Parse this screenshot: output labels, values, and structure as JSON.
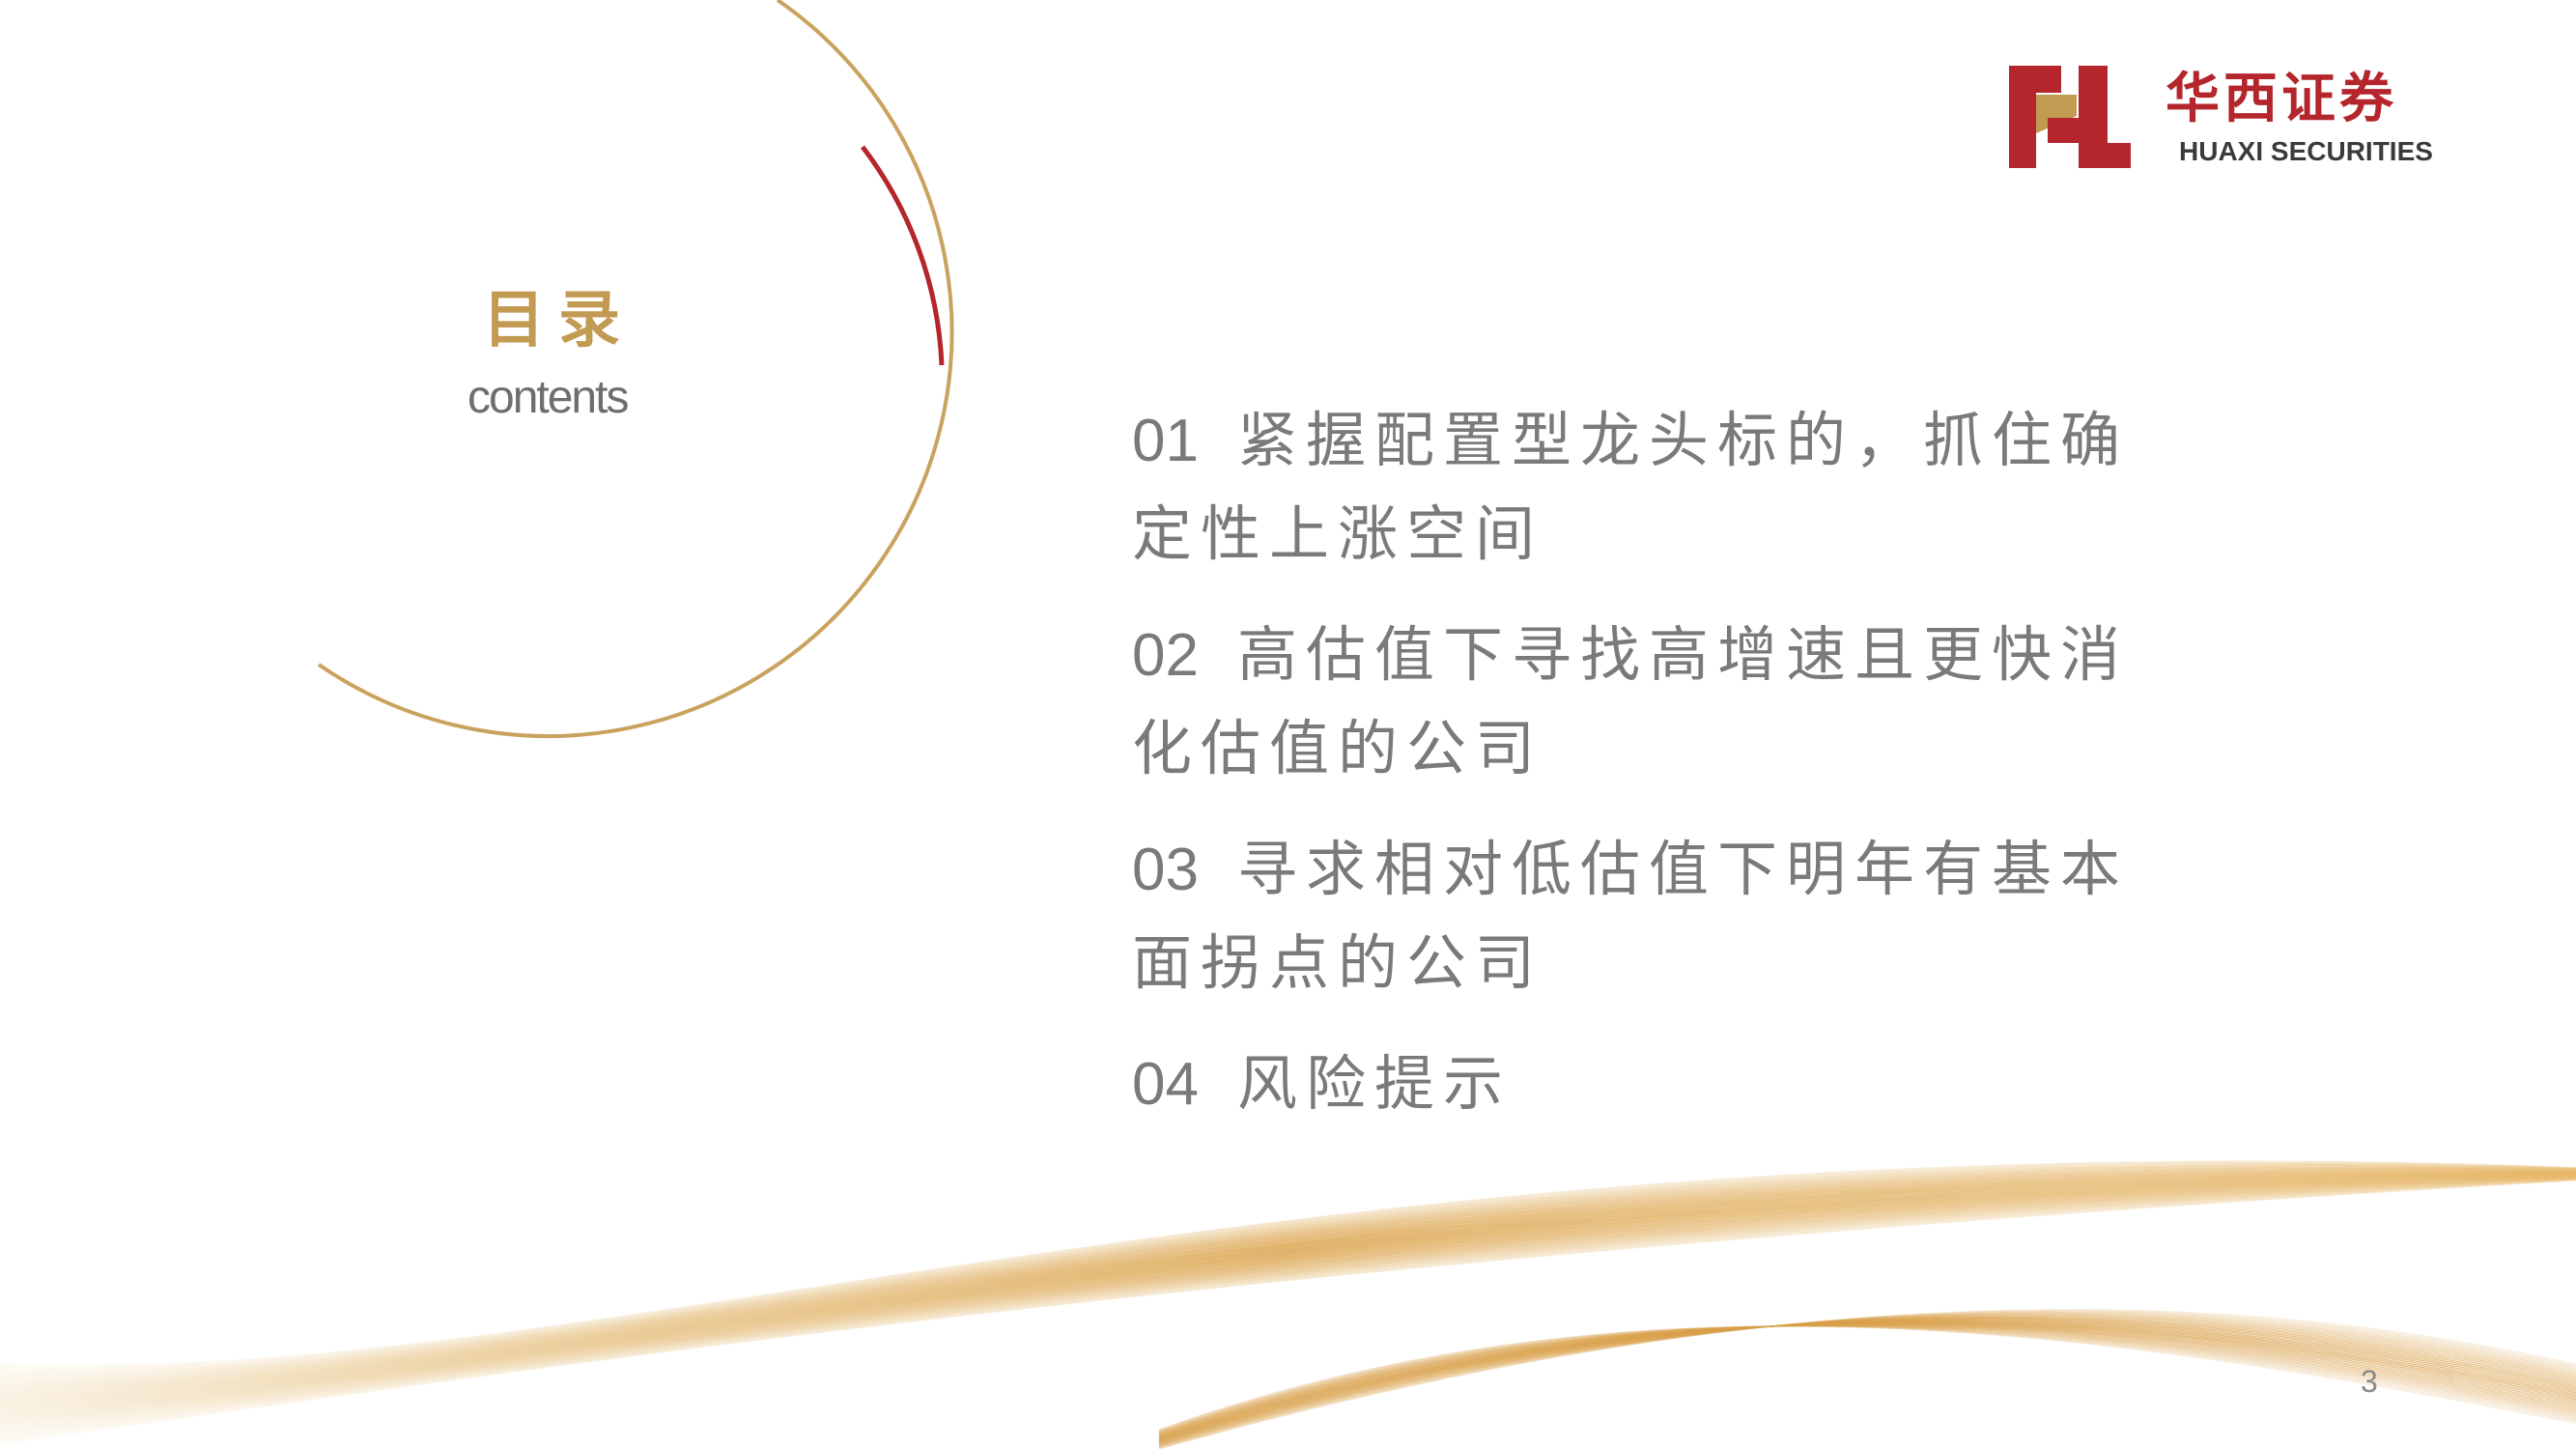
{
  "slide": {
    "title": "目录",
    "subtitle": "contents",
    "page_number": "3"
  },
  "logo": {
    "name_cn": "华西证券",
    "name_en": "HUAXI SECURITIES",
    "mark_icon": "huaxi-h-logo-icon"
  },
  "toc": {
    "items": [
      {
        "number": "01",
        "text": "紧握配置型龙头标的，抓住确定性上涨空间"
      },
      {
        "number": "02",
        "text": "高估值下寻找高增速且更快消化估值的公司"
      },
      {
        "number": "03",
        "text": "寻求相对低估值下明年有基本面拐点的公司"
      },
      {
        "number": "04",
        "text": "风险提示"
      }
    ]
  },
  "colors": {
    "gold": "#c29a52",
    "red": "#b4252c",
    "text_gray": "#7a7a7a"
  }
}
